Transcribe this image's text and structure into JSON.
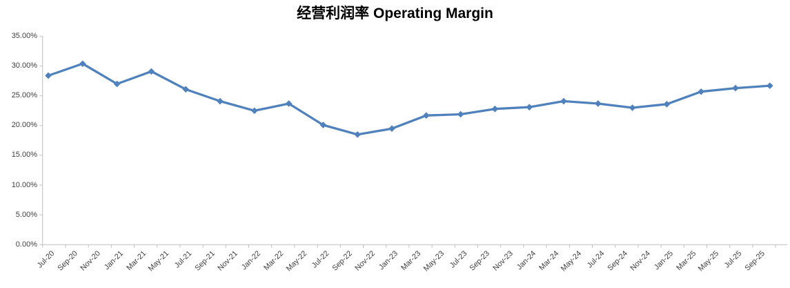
{
  "chart": {
    "title": "经营利润率 Operating Margin"
  },
  "chart_data": {
    "type": "line",
    "title": "经营利润率 Operating Margin",
    "xlabel": "",
    "ylabel": "",
    "ylim": [
      0,
      35
    ],
    "y_unit": "percent",
    "grid": false,
    "legend": "none",
    "line_color": "#4F81BD",
    "marker": "diamond",
    "axis_color": "#BFBFBF",
    "tick_label_color": "#3f3f3f",
    "y_tick_labels": [
      "35.00%",
      "30.00%",
      "25.00%",
      "20.00%",
      "15.00%",
      "10.00%",
      "5.00%",
      "0.00%"
    ],
    "x_tick_labels": [
      "Jul-20",
      "Sep-20",
      "Nov-20",
      "Jan-21",
      "Mar-21",
      "May-21",
      "Jul-21",
      "Sep-21",
      "Nov-21",
      "Jan-22",
      "Mar-22",
      "May-22",
      "Jul-22",
      "Sep-22",
      "Nov-22",
      "Jan-23",
      "Mar-23",
      "May-23",
      "Jul-23",
      "Sep-23",
      "Nov-23",
      "Jan-24",
      "Mar-24",
      "May-24",
      "Jul-24",
      "Sep-24",
      "Nov-24",
      "Jan-25",
      "Mar-25",
      "May-25",
      "Jul-25",
      "Sep-25"
    ],
    "series": [
      {
        "name": "Operating Margin",
        "points": [
          {
            "date": "Jul-20",
            "value": 28.4
          },
          {
            "date": "Oct-20",
            "value": 30.4
          },
          {
            "date": "Jan-21",
            "value": 27.0
          },
          {
            "date": "Apr-21",
            "value": 29.1
          },
          {
            "date": "Jul-21",
            "value": 26.1
          },
          {
            "date": "Oct-21",
            "value": 24.1
          },
          {
            "date": "Jan-22",
            "value": 22.5
          },
          {
            "date": "Apr-22",
            "value": 23.7
          },
          {
            "date": "Jul-22",
            "value": 20.1
          },
          {
            "date": "Oct-22",
            "value": 18.5
          },
          {
            "date": "Jan-23",
            "value": 19.5
          },
          {
            "date": "Apr-23",
            "value": 21.7
          },
          {
            "date": "Jul-23",
            "value": 21.9
          },
          {
            "date": "Oct-23",
            "value": 22.8
          },
          {
            "date": "Jan-24",
            "value": 23.1
          },
          {
            "date": "Apr-24",
            "value": 24.1
          },
          {
            "date": "Jul-24",
            "value": 23.7
          },
          {
            "date": "Oct-24",
            "value": 23.0
          },
          {
            "date": "Jan-25",
            "value": 23.6
          },
          {
            "date": "Apr-25",
            "value": 25.7
          },
          {
            "date": "Jul-25",
            "value": 26.3
          },
          {
            "date": "Oct-25",
            "value": 26.7
          }
        ]
      }
    ]
  }
}
